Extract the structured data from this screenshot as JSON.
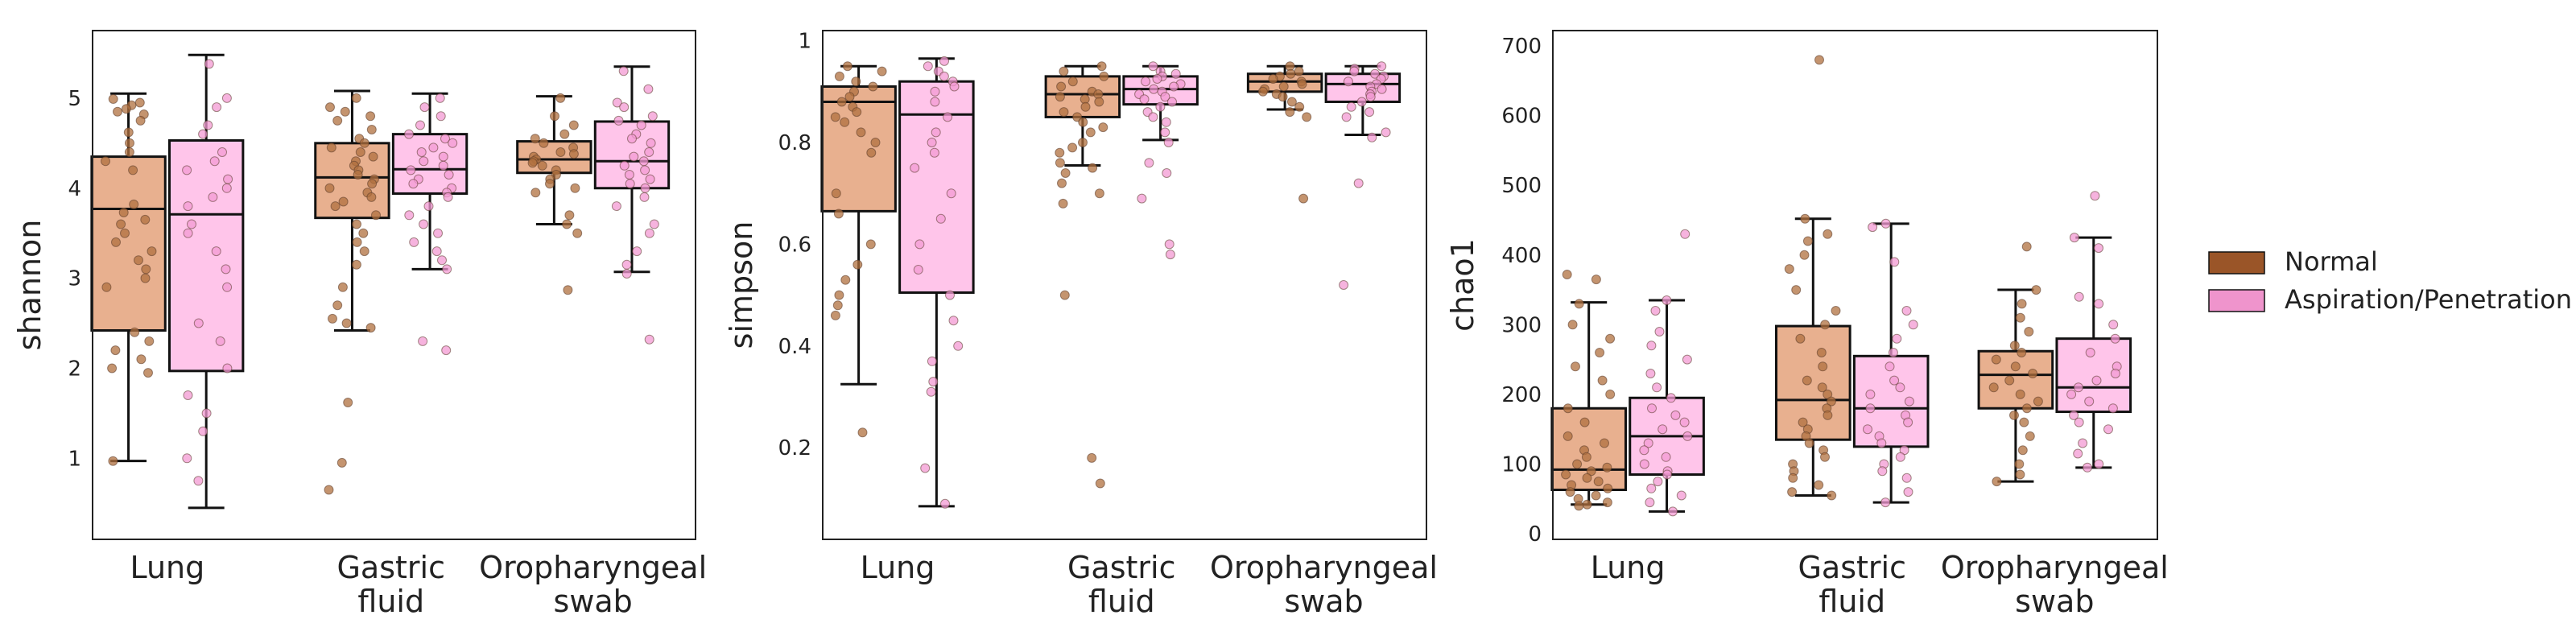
{
  "chart_data": [
    {
      "type": "box",
      "ylabel": "shannon",
      "ylim": [
        0.1,
        5.75
      ],
      "yticks": [
        1,
        2,
        3,
        4,
        5
      ],
      "categories": [
        "Lung",
        "Gastric\nfluid",
        "Oropharyngeal\nswab"
      ],
      "series": [
        {
          "name": "Normal",
          "boxes": [
            {
              "min": 0.97,
              "q1": 2.42,
              "median": 3.77,
              "q3": 4.35,
              "max": 5.05
            },
            {
              "min": 2.42,
              "q1": 3.67,
              "median": 4.12,
              "q3": 4.5,
              "max": 5.08
            },
            {
              "min": 3.6,
              "q1": 4.17,
              "median": 4.32,
              "q3": 4.52,
              "max": 5.02
            }
          ]
        },
        {
          "name": "Aspiration/Penetration",
          "boxes": [
            {
              "min": 0.45,
              "q1": 1.97,
              "median": 3.71,
              "q3": 4.53,
              "max": 5.48
            },
            {
              "min": 3.1,
              "q1": 3.94,
              "median": 4.21,
              "q3": 4.6,
              "max": 5.05
            },
            {
              "min": 3.07,
              "q1": 4.0,
              "median": 4.3,
              "q3": 4.74,
              "max": 5.35
            }
          ]
        }
      ],
      "points": [
        [
          [
            4.99,
            4.95,
            4.92,
            4.88,
            4.85,
            4.82,
            4.75,
            4.62,
            4.5,
            4.4,
            4.3,
            4.2,
            3.82,
            3.73,
            3.65,
            3.6,
            3.5,
            3.4,
            3.3,
            3.2,
            3.1,
            3.0,
            2.9,
            2.4,
            2.3,
            2.2,
            2.1,
            2.0,
            1.95,
            0.97
          ],
          [
            5.0,
            4.9,
            4.85,
            4.8,
            4.75,
            4.65,
            4.55,
            4.5,
            4.45,
            4.4,
            4.35,
            4.3,
            4.25,
            4.2,
            4.15,
            4.1,
            4.05,
            4.0,
            3.95,
            3.9,
            3.85,
            3.8,
            3.7,
            3.6,
            3.5,
            3.4,
            3.3,
            3.15,
            2.9,
            2.7,
            2.55,
            2.5,
            2.45,
            1.62,
            0.95,
            0.65
          ],
          [
            5.0,
            4.8,
            4.7,
            4.6,
            4.55,
            4.5,
            4.45,
            4.4,
            4.38,
            4.35,
            4.32,
            4.3,
            4.28,
            4.25,
            4.2,
            4.15,
            4.1,
            4.05,
            4.0,
            3.95,
            3.7,
            3.6,
            3.5,
            2.87
          ]
        ],
        [
          [
            5.38,
            5.0,
            4.9,
            4.7,
            4.6,
            4.4,
            4.3,
            4.2,
            4.1,
            4.0,
            3.9,
            3.8,
            3.6,
            3.5,
            3.3,
            3.1,
            2.9,
            2.5,
            2.3,
            2.0,
            1.7,
            1.5,
            1.3,
            1.0,
            0.75
          ],
          [
            5.0,
            4.9,
            4.8,
            4.7,
            4.6,
            4.55,
            4.5,
            4.45,
            4.4,
            4.35,
            4.3,
            4.25,
            4.2,
            4.15,
            4.1,
            4.05,
            4.0,
            3.95,
            3.9,
            3.8,
            3.7,
            3.6,
            3.5,
            3.4,
            3.3,
            3.2,
            3.1,
            2.3,
            2.2
          ],
          [
            5.3,
            5.1,
            4.95,
            4.9,
            4.8,
            4.75,
            4.7,
            4.6,
            4.55,
            4.5,
            4.4,
            4.35,
            4.3,
            4.25,
            4.2,
            4.15,
            4.1,
            4.05,
            4.0,
            3.9,
            3.8,
            3.6,
            3.5,
            3.3,
            3.15,
            3.05,
            2.32
          ]
        ]
      ]
    },
    {
      "type": "box",
      "ylabel": "simpson",
      "ylim": [
        0.02,
        1.02
      ],
      "yticks": [
        0.2,
        0.4,
        0.6,
        0.8,
        1.0
      ],
      "categories": [
        "Lung",
        "Gastric\nfluid",
        "Oropharyngeal\nswab"
      ],
      "series": [
        {
          "name": "Normal",
          "boxes": [
            {
              "min": 0.325,
              "q1": 0.665,
              "median": 0.88,
              "q3": 0.91,
              "max": 0.95
            },
            {
              "min": 0.755,
              "q1": 0.85,
              "median": 0.895,
              "q3": 0.93,
              "max": 0.95
            },
            {
              "min": 0.865,
              "q1": 0.9,
              "median": 0.92,
              "q3": 0.935,
              "max": 0.95
            }
          ]
        },
        {
          "name": "Aspiration/Penetration",
          "boxes": [
            {
              "min": 0.085,
              "q1": 0.505,
              "median": 0.855,
              "q3": 0.92,
              "max": 0.965
            },
            {
              "min": 0.805,
              "q1": 0.875,
              "median": 0.905,
              "q3": 0.93,
              "max": 0.95
            },
            {
              "min": 0.815,
              "q1": 0.88,
              "median": 0.915,
              "q3": 0.935,
              "max": 0.95
            }
          ]
        }
      ],
      "points": [
        [
          [
            0.95,
            0.94,
            0.93,
            0.92,
            0.91,
            0.9,
            0.89,
            0.88,
            0.87,
            0.86,
            0.85,
            0.84,
            0.82,
            0.8,
            0.78,
            0.7,
            0.66,
            0.6,
            0.56,
            0.53,
            0.5,
            0.48,
            0.46,
            0.23
          ],
          [
            0.95,
            0.94,
            0.93,
            0.92,
            0.91,
            0.9,
            0.895,
            0.89,
            0.885,
            0.88,
            0.87,
            0.86,
            0.85,
            0.84,
            0.83,
            0.82,
            0.8,
            0.79,
            0.78,
            0.76,
            0.75,
            0.74,
            0.72,
            0.7,
            0.68,
            0.5,
            0.18,
            0.13
          ],
          [
            0.95,
            0.94,
            0.935,
            0.93,
            0.925,
            0.92,
            0.915,
            0.91,
            0.905,
            0.9,
            0.895,
            0.89,
            0.88,
            0.87,
            0.86,
            0.85,
            0.69
          ]
        ],
        [
          [
            0.96,
            0.95,
            0.94,
            0.93,
            0.92,
            0.91,
            0.9,
            0.88,
            0.85,
            0.82,
            0.8,
            0.78,
            0.75,
            0.7,
            0.65,
            0.6,
            0.55,
            0.5,
            0.45,
            0.4,
            0.37,
            0.33,
            0.31,
            0.16,
            0.09
          ],
          [
            0.95,
            0.94,
            0.935,
            0.93,
            0.925,
            0.92,
            0.915,
            0.91,
            0.905,
            0.9,
            0.895,
            0.89,
            0.885,
            0.88,
            0.87,
            0.86,
            0.85,
            0.84,
            0.82,
            0.8,
            0.76,
            0.74,
            0.69,
            0.6,
            0.58
          ],
          [
            0.95,
            0.945,
            0.94,
            0.935,
            0.93,
            0.925,
            0.92,
            0.915,
            0.91,
            0.905,
            0.9,
            0.895,
            0.89,
            0.88,
            0.87,
            0.86,
            0.85,
            0.82,
            0.81,
            0.72,
            0.52
          ]
        ]
      ]
    },
    {
      "type": "box",
      "ylabel": "chao1",
      "ylim": [
        -8,
        722
      ],
      "yticks": [
        0,
        100,
        200,
        300,
        400,
        500,
        600,
        700
      ],
      "categories": [
        "Lung",
        "Gastric\nfluid",
        "Oropharyngeal\nswab"
      ],
      "series": [
        {
          "name": "Normal",
          "boxes": [
            {
              "min": 42,
              "q1": 63,
              "median": 92,
              "q3": 180,
              "max": 332
            },
            {
              "min": 55,
              "q1": 135,
              "median": 192,
              "q3": 298,
              "max": 452
            },
            {
              "min": 75,
              "q1": 180,
              "median": 228,
              "q3": 262,
              "max": 350
            }
          ]
        },
        {
          "name": "Aspiration/Penetration",
          "boxes": [
            {
              "min": 32,
              "q1": 85,
              "median": 140,
              "q3": 195,
              "max": 335
            },
            {
              "min": 45,
              "q1": 125,
              "median": 180,
              "q3": 255,
              "max": 445
            },
            {
              "min": 95,
              "q1": 175,
              "median": 210,
              "q3": 280,
              "max": 425
            }
          ]
        }
      ],
      "points": [
        [
          [
            372,
            365,
            330,
            300,
            280,
            260,
            240,
            220,
            200,
            180,
            160,
            140,
            130,
            120,
            110,
            100,
            95,
            90,
            85,
            80,
            75,
            70,
            65,
            60,
            55,
            50,
            45,
            42,
            40
          ],
          [
            680,
            452,
            430,
            420,
            400,
            380,
            350,
            320,
            300,
            280,
            260,
            240,
            220,
            210,
            200,
            190,
            180,
            170,
            160,
            150,
            140,
            130,
            120,
            110,
            100,
            90,
            80,
            70,
            60,
            55
          ],
          [
            412,
            350,
            330,
            310,
            290,
            270,
            260,
            250,
            240,
            230,
            220,
            210,
            200,
            190,
            180,
            170,
            160,
            140,
            120,
            100,
            85,
            75
          ]
        ],
        [
          [
            430,
            335,
            320,
            290,
            270,
            250,
            230,
            210,
            195,
            180,
            170,
            160,
            150,
            140,
            130,
            120,
            110,
            100,
            90,
            85,
            75,
            65,
            55,
            45,
            32
          ],
          [
            445,
            440,
            390,
            320,
            300,
            280,
            260,
            240,
            220,
            210,
            200,
            190,
            180,
            170,
            160,
            150,
            140,
            130,
            120,
            110,
            100,
            90,
            80,
            60,
            45
          ],
          [
            485,
            425,
            410,
            340,
            330,
            300,
            280,
            260,
            240,
            230,
            220,
            210,
            200,
            190,
            180,
            170,
            160,
            150,
            130,
            115,
            100,
            95
          ]
        ]
      ]
    }
  ],
  "legend": [
    {
      "label": "Normal",
      "color": "#9a5528"
    },
    {
      "label": "Aspiration/Penetration",
      "color": "#ef94cc"
    }
  ],
  "colors": {
    "normal_box": "#e8b08f",
    "asp_box": "#ffc5ea",
    "normal_point": "#b0703f",
    "asp_point": "#f39ad3",
    "outline": "#111111"
  }
}
